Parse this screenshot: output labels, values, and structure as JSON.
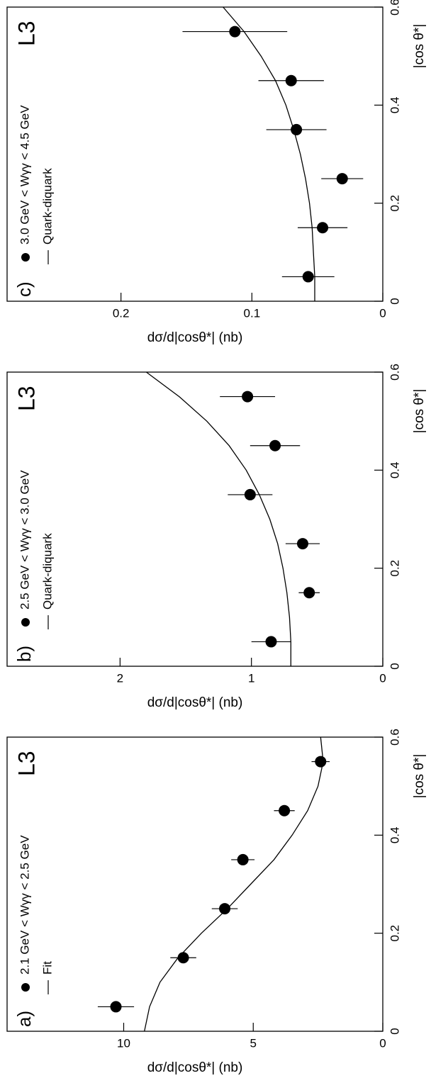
{
  "chart_data": [
    {
      "type": "scatter",
      "panel_label": "a)",
      "logo": "L3",
      "xlabel": "|cos θ*|",
      "ylabel": "dσ/d|cosθ*| (nb)",
      "xlim": [
        0,
        0.6
      ],
      "xticks": [
        0,
        0.2,
        0.4,
        0.6
      ],
      "ylim": [
        0,
        14.5
      ],
      "yticks": [
        0,
        5,
        10
      ],
      "series": [
        {
          "name": "2.1 GeV < Wγγ < 2.5 GeV",
          "kind": "points",
          "color": "#000000",
          "x": [
            0.05,
            0.15,
            0.25,
            0.35,
            0.45,
            0.55
          ],
          "values": [
            10.3,
            7.7,
            6.1,
            5.4,
            3.8,
            2.4
          ],
          "errors": [
            0.7,
            0.5,
            0.5,
            0.45,
            0.4,
            0.35
          ]
        },
        {
          "name": "Fit",
          "kind": "line",
          "color": "#000000",
          "x": [
            0,
            0.05,
            0.1,
            0.15,
            0.2,
            0.25,
            0.3,
            0.35,
            0.4,
            0.45,
            0.5,
            0.55,
            0.6
          ],
          "values": [
            9.2,
            9.0,
            8.6,
            7.9,
            7.0,
            6.0,
            5.1,
            4.2,
            3.5,
            2.9,
            2.5,
            2.3,
            2.4
          ]
        }
      ]
    },
    {
      "type": "scatter",
      "panel_label": "b)",
      "logo": "L3",
      "xlabel": "|cos θ*|",
      "ylabel": "dσ/d|cosθ*| (nb)",
      "xlim": [
        0,
        0.6
      ],
      "xticks": [
        0,
        0.2,
        0.4,
        0.6
      ],
      "ylim": [
        0,
        2.86
      ],
      "yticks": [
        0,
        1,
        2
      ],
      "series": [
        {
          "name": "2.5 GeV < Wγγ < 3.0 GeV",
          "kind": "points",
          "color": "#000000",
          "x": [
            0.05,
            0.15,
            0.25,
            0.35,
            0.45,
            0.55
          ],
          "values": [
            0.85,
            0.56,
            0.61,
            1.01,
            0.82,
            1.03
          ],
          "errors": [
            0.15,
            0.08,
            0.13,
            0.17,
            0.19,
            0.21
          ]
        },
        {
          "name": "Quark-diquark",
          "kind": "line",
          "color": "#000000",
          "x": [
            0,
            0.05,
            0.1,
            0.15,
            0.2,
            0.25,
            0.3,
            0.35,
            0.4,
            0.45,
            0.5,
            0.55,
            0.6
          ],
          "values": [
            0.7,
            0.7,
            0.71,
            0.73,
            0.76,
            0.8,
            0.86,
            0.94,
            1.04,
            1.17,
            1.34,
            1.55,
            1.8
          ]
        }
      ]
    },
    {
      "type": "scatter",
      "panel_label": "c)",
      "logo": "L3",
      "xlabel": "|cos θ*|",
      "ylabel": "dσ/d|cosθ*| (nb)",
      "xlim": [
        0,
        0.6
      ],
      "xticks": [
        0,
        0.2,
        0.4,
        0.6
      ],
      "ylim": [
        0,
        0.287
      ],
      "yticks": [
        0,
        0.1,
        0.2
      ],
      "series": [
        {
          "name": "3.0 GeV < Wγγ < 4.5 GeV",
          "kind": "points",
          "color": "#000000",
          "x": [
            0.05,
            0.15,
            0.25,
            0.35,
            0.45,
            0.55
          ],
          "values": [
            0.057,
            0.046,
            0.031,
            0.066,
            0.07,
            0.113
          ],
          "errors": [
            0.02,
            0.019,
            0.016,
            0.023,
            0.025,
            0.04
          ]
        },
        {
          "name": "Quark-diquark",
          "kind": "line",
          "color": "#000000",
          "x": [
            0,
            0.05,
            0.1,
            0.15,
            0.2,
            0.25,
            0.3,
            0.35,
            0.4,
            0.45,
            0.5,
            0.55,
            0.6
          ],
          "values": [
            0.052,
            0.052,
            0.053,
            0.054,
            0.056,
            0.059,
            0.063,
            0.068,
            0.074,
            0.082,
            0.093,
            0.106,
            0.122
          ]
        }
      ]
    }
  ]
}
